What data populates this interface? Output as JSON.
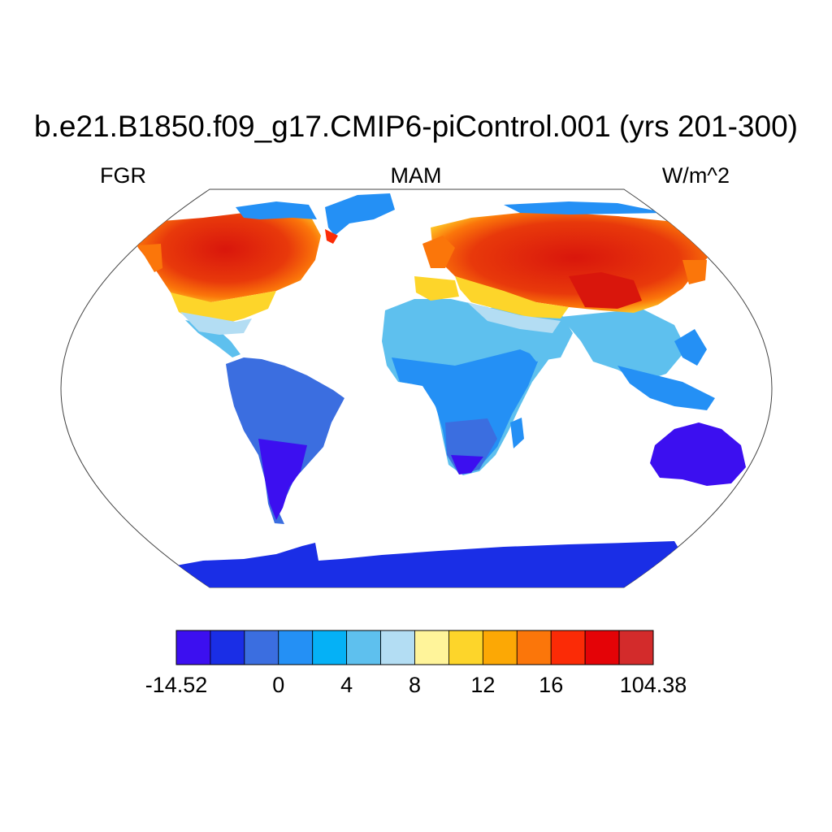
{
  "title": "b.e21.B1850.f09_g17.CMIP6-piControl.001 (yrs 201-300)",
  "left_label": "FGR",
  "center_label": "MAM",
  "right_label": "W/m^2",
  "colorbar": {
    "colors": [
      "#3c0ff0",
      "#1a2ee6",
      "#3b6ee0",
      "#2490f5",
      "#05b1f6",
      "#5ec0ee",
      "#b3ddf3",
      "#fff49a",
      "#fdd52a",
      "#fca805",
      "#fb760a",
      "#fb2b06",
      "#e40307",
      "#d32b2b"
    ],
    "tick_labels": [
      "-14.52",
      "0",
      "4",
      "8",
      "12",
      "16",
      "104.38"
    ]
  }
}
